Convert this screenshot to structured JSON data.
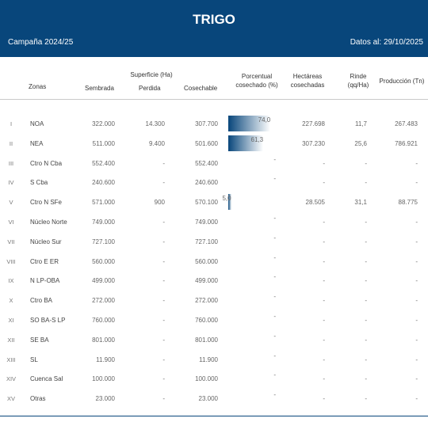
{
  "header": {
    "title": "TRIGO",
    "campaign": "Campaña 2024/25",
    "date": "Datos al: 29/10/2025"
  },
  "columns": {
    "zonas": "Zonas",
    "superficie": "Superficie (Ha)",
    "sembrada": "Sembrada",
    "perdida": "Perdida",
    "cosechable": "Cosechable",
    "porcentual": "Porcentual",
    "cosechado_pct": "cosechado (%)",
    "hectareas": "Hectáreas",
    "cosechadas": "cosechadas",
    "rinde": "Rinde",
    "qq_ha": "(qq/Ha)",
    "produccion": "Producción (Tn)"
  },
  "bar_color": "#08467b",
  "rows": [
    {
      "roman": "I",
      "zona": "NOA",
      "sembrada": "322.000",
      "perdida": "14.300",
      "cosechable": "307.700",
      "pct_label": "74,0",
      "pct": 74.0,
      "hectareas": "227.698",
      "rinde": "11,7",
      "produccion": "267.483"
    },
    {
      "roman": "II",
      "zona": "NEA",
      "sembrada": "511.000",
      "perdida": "9.400",
      "cosechable": "501.600",
      "pct_label": "61,3",
      "pct": 61.3,
      "hectareas": "307.230",
      "rinde": "25,6",
      "produccion": "786.921"
    },
    {
      "roman": "III",
      "zona": "Ctro N Cba",
      "sembrada": "552.400",
      "perdida": "-",
      "cosechable": "552.400",
      "pct_label": "-",
      "pct": 0,
      "hectareas": "-",
      "rinde": "-",
      "produccion": "-"
    },
    {
      "roman": "IV",
      "zona": "S Cba",
      "sembrada": "240.600",
      "perdida": "-",
      "cosechable": "240.600",
      "pct_label": "-",
      "pct": 0,
      "hectareas": "-",
      "rinde": "-",
      "produccion": "-"
    },
    {
      "roman": "V",
      "zona": "Ctro N SFe",
      "sembrada": "571.000",
      "perdida": "900",
      "cosechable": "570.100",
      "pct_label": "5,0",
      "pct": 5.0,
      "hectareas": "28.505",
      "rinde": "31,1",
      "produccion": "88.775"
    },
    {
      "roman": "VI",
      "zona": "Núcleo Norte",
      "sembrada": "749.000",
      "perdida": "-",
      "cosechable": "749.000",
      "pct_label": "-",
      "pct": 0,
      "hectareas": "-",
      "rinde": "-",
      "produccion": "-"
    },
    {
      "roman": "VII",
      "zona": "Núcleo Sur",
      "sembrada": "727.100",
      "perdida": "-",
      "cosechable": "727.100",
      "pct_label": "-",
      "pct": 0,
      "hectareas": "-",
      "rinde": "-",
      "produccion": "-"
    },
    {
      "roman": "VIII",
      "zona": "Ctro E ER",
      "sembrada": "560.000",
      "perdida": "-",
      "cosechable": "560.000",
      "pct_label": "-",
      "pct": 0,
      "hectareas": "-",
      "rinde": "-",
      "produccion": "-"
    },
    {
      "roman": "IX",
      "zona": "N LP-OBA",
      "sembrada": "499.000",
      "perdida": "-",
      "cosechable": "499.000",
      "pct_label": "-",
      "pct": 0,
      "hectareas": "-",
      "rinde": "-",
      "produccion": "-"
    },
    {
      "roman": "X",
      "zona": "Ctro BA",
      "sembrada": "272.000",
      "perdida": "-",
      "cosechable": "272.000",
      "pct_label": "-",
      "pct": 0,
      "hectareas": "-",
      "rinde": "-",
      "produccion": "-"
    },
    {
      "roman": "XI",
      "zona": "SO BA-S LP",
      "sembrada": "760.000",
      "perdida": "-",
      "cosechable": "760.000",
      "pct_label": "-",
      "pct": 0,
      "hectareas": "-",
      "rinde": "-",
      "produccion": "-"
    },
    {
      "roman": "XII",
      "zona": "SE BA",
      "sembrada": "801.000",
      "perdida": "-",
      "cosechable": "801.000",
      "pct_label": "-",
      "pct": 0,
      "hectareas": "-",
      "rinde": "-",
      "produccion": "-"
    },
    {
      "roman": "XIII",
      "zona": "SL",
      "sembrada": "11.900",
      "perdida": "-",
      "cosechable": "11.900",
      "pct_label": "-",
      "pct": 0,
      "hectareas": "-",
      "rinde": "-",
      "produccion": "-"
    },
    {
      "roman": "XIV",
      "zona": "Cuenca Sal",
      "sembrada": "100.000",
      "perdida": "-",
      "cosechable": "100.000",
      "pct_label": "-",
      "pct": 0,
      "hectareas": "-",
      "rinde": "-",
      "produccion": "-"
    },
    {
      "roman": "XV",
      "zona": "Otras",
      "sembrada": "23.000",
      "perdida": "-",
      "cosechable": "23.000",
      "pct_label": "-",
      "pct": 0,
      "hectareas": "-",
      "rinde": "-",
      "produccion": "-"
    }
  ]
}
